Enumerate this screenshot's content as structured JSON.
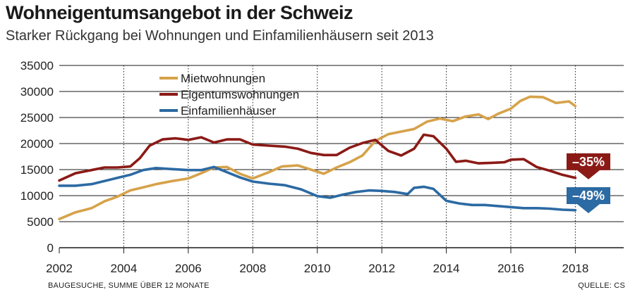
{
  "header": {
    "title": "Wohneigentumsangebot in der Schweiz",
    "subtitle": "Starker Rückgang bei Wohnungen und Einfamilienhäusern seit 2013"
  },
  "footer": {
    "note": "BAUGESUCHE, SUMME ÜBER 12 MONATE",
    "source": "QUELLE: CS"
  },
  "chart_data": {
    "type": "line",
    "title": "Wohneigentumsangebot in der Schweiz",
    "xlabel": "",
    "ylabel": "",
    "xlim": [
      2002,
      2019.5
    ],
    "ylim": [
      0,
      35000
    ],
    "yticks": [
      0,
      5000,
      10000,
      15000,
      20000,
      25000,
      30000,
      35000
    ],
    "ytick_labels": [
      "0",
      "5000",
      "10000",
      "15000",
      "20000",
      "25000",
      "30000",
      "35000"
    ],
    "xticks": [
      2002,
      2004,
      2006,
      2008,
      2010,
      2012,
      2014,
      2016,
      2018
    ],
    "xtick_labels": [
      "2002",
      "2004",
      "2006",
      "2008",
      "2010",
      "2012",
      "2014",
      "2016",
      "2018"
    ],
    "grid": "horizontal-solid, vertical-dotted",
    "legend_position": "top-center",
    "series": [
      {
        "name": "Mietwohnungen",
        "color": "#d6a24a",
        "points": [
          [
            2002.0,
            5500
          ],
          [
            2002.5,
            6800
          ],
          [
            2003.0,
            7600
          ],
          [
            2003.4,
            8900
          ],
          [
            2003.8,
            9800
          ],
          [
            2004.2,
            11000
          ],
          [
            2004.6,
            11600
          ],
          [
            2005.0,
            12200
          ],
          [
            2005.5,
            12800
          ],
          [
            2006.0,
            13300
          ],
          [
            2006.4,
            14300
          ],
          [
            2006.8,
            15400
          ],
          [
            2007.2,
            15500
          ],
          [
            2007.6,
            14200
          ],
          [
            2008.0,
            13300
          ],
          [
            2008.5,
            14500
          ],
          [
            2008.9,
            15600
          ],
          [
            2009.4,
            15800
          ],
          [
            2009.8,
            15000
          ],
          [
            2010.2,
            14200
          ],
          [
            2010.6,
            15400
          ],
          [
            2011.0,
            16400
          ],
          [
            2011.4,
            17700
          ],
          [
            2011.8,
            20500
          ],
          [
            2012.2,
            21800
          ],
          [
            2012.6,
            22300
          ],
          [
            2013.0,
            22800
          ],
          [
            2013.4,
            24200
          ],
          [
            2013.8,
            24800
          ],
          [
            2014.2,
            24300
          ],
          [
            2014.6,
            25200
          ],
          [
            2015.0,
            25600
          ],
          [
            2015.3,
            24700
          ],
          [
            2015.6,
            25700
          ],
          [
            2016.0,
            26700
          ],
          [
            2016.3,
            28200
          ],
          [
            2016.6,
            29000
          ],
          [
            2017.0,
            28900
          ],
          [
            2017.4,
            27800
          ],
          [
            2017.8,
            28100
          ],
          [
            2018.0,
            27200
          ]
        ]
      },
      {
        "name": "Eigentumswohnungen",
        "color": "#8b1a16",
        "points": [
          [
            2002.0,
            12900
          ],
          [
            2002.5,
            14300
          ],
          [
            2003.0,
            14900
          ],
          [
            2003.4,
            15400
          ],
          [
            2003.8,
            15400
          ],
          [
            2004.2,
            15600
          ],
          [
            2004.5,
            17200
          ],
          [
            2004.8,
            19600
          ],
          [
            2005.2,
            20800
          ],
          [
            2005.6,
            21000
          ],
          [
            2006.0,
            20700
          ],
          [
            2006.4,
            21200
          ],
          [
            2006.8,
            20200
          ],
          [
            2007.2,
            20800
          ],
          [
            2007.6,
            20800
          ],
          [
            2008.0,
            19800
          ],
          [
            2008.5,
            19600
          ],
          [
            2009.0,
            19400
          ],
          [
            2009.4,
            19000
          ],
          [
            2009.8,
            18200
          ],
          [
            2010.2,
            17800
          ],
          [
            2010.6,
            17800
          ],
          [
            2011.0,
            19200
          ],
          [
            2011.4,
            20100
          ],
          [
            2011.8,
            20700
          ],
          [
            2012.2,
            18600
          ],
          [
            2012.6,
            17700
          ],
          [
            2013.0,
            19000
          ],
          [
            2013.3,
            21700
          ],
          [
            2013.6,
            21400
          ],
          [
            2014.0,
            19000
          ],
          [
            2014.3,
            16500
          ],
          [
            2014.6,
            16700
          ],
          [
            2015.0,
            16200
          ],
          [
            2015.4,
            16300
          ],
          [
            2015.8,
            16400
          ],
          [
            2016.0,
            16900
          ],
          [
            2016.4,
            17000
          ],
          [
            2016.8,
            15500
          ],
          [
            2017.2,
            14800
          ],
          [
            2017.6,
            14000
          ],
          [
            2018.0,
            13400
          ]
        ]
      },
      {
        "name": "Einfamilienhäuser",
        "color": "#2c6aa3",
        "points": [
          [
            2002.0,
            11900
          ],
          [
            2002.5,
            11900
          ],
          [
            2003.0,
            12200
          ],
          [
            2003.4,
            12800
          ],
          [
            2003.8,
            13400
          ],
          [
            2004.2,
            14000
          ],
          [
            2004.6,
            14900
          ],
          [
            2005.0,
            15300
          ],
          [
            2005.5,
            15100
          ],
          [
            2006.0,
            14900
          ],
          [
            2006.4,
            14900
          ],
          [
            2006.8,
            15500
          ],
          [
            2007.2,
            14500
          ],
          [
            2007.6,
            13500
          ],
          [
            2008.0,
            12700
          ],
          [
            2008.5,
            12300
          ],
          [
            2009.0,
            12000
          ],
          [
            2009.5,
            11200
          ],
          [
            2010.0,
            9900
          ],
          [
            2010.4,
            9600
          ],
          [
            2010.8,
            10200
          ],
          [
            2011.2,
            10700
          ],
          [
            2011.6,
            11000
          ],
          [
            2012.0,
            10900
          ],
          [
            2012.4,
            10700
          ],
          [
            2012.8,
            10300
          ],
          [
            2013.0,
            11500
          ],
          [
            2013.3,
            11700
          ],
          [
            2013.6,
            11300
          ],
          [
            2014.0,
            9000
          ],
          [
            2014.4,
            8500
          ],
          [
            2014.8,
            8200
          ],
          [
            2015.2,
            8200
          ],
          [
            2015.6,
            8000
          ],
          [
            2016.0,
            7800
          ],
          [
            2016.4,
            7600
          ],
          [
            2016.8,
            7600
          ],
          [
            2017.2,
            7500
          ],
          [
            2017.6,
            7300
          ],
          [
            2018.0,
            7200
          ]
        ]
      }
    ],
    "annotations": [
      {
        "label": "–35%",
        "series": "Eigentumswohnungen",
        "color": "#8b1a16",
        "value": 16500,
        "direction": "down"
      },
      {
        "label": "–49%",
        "series": "Einfamilienhäuser",
        "color": "#2c6aa3",
        "value": 10000,
        "direction": "down"
      }
    ]
  }
}
